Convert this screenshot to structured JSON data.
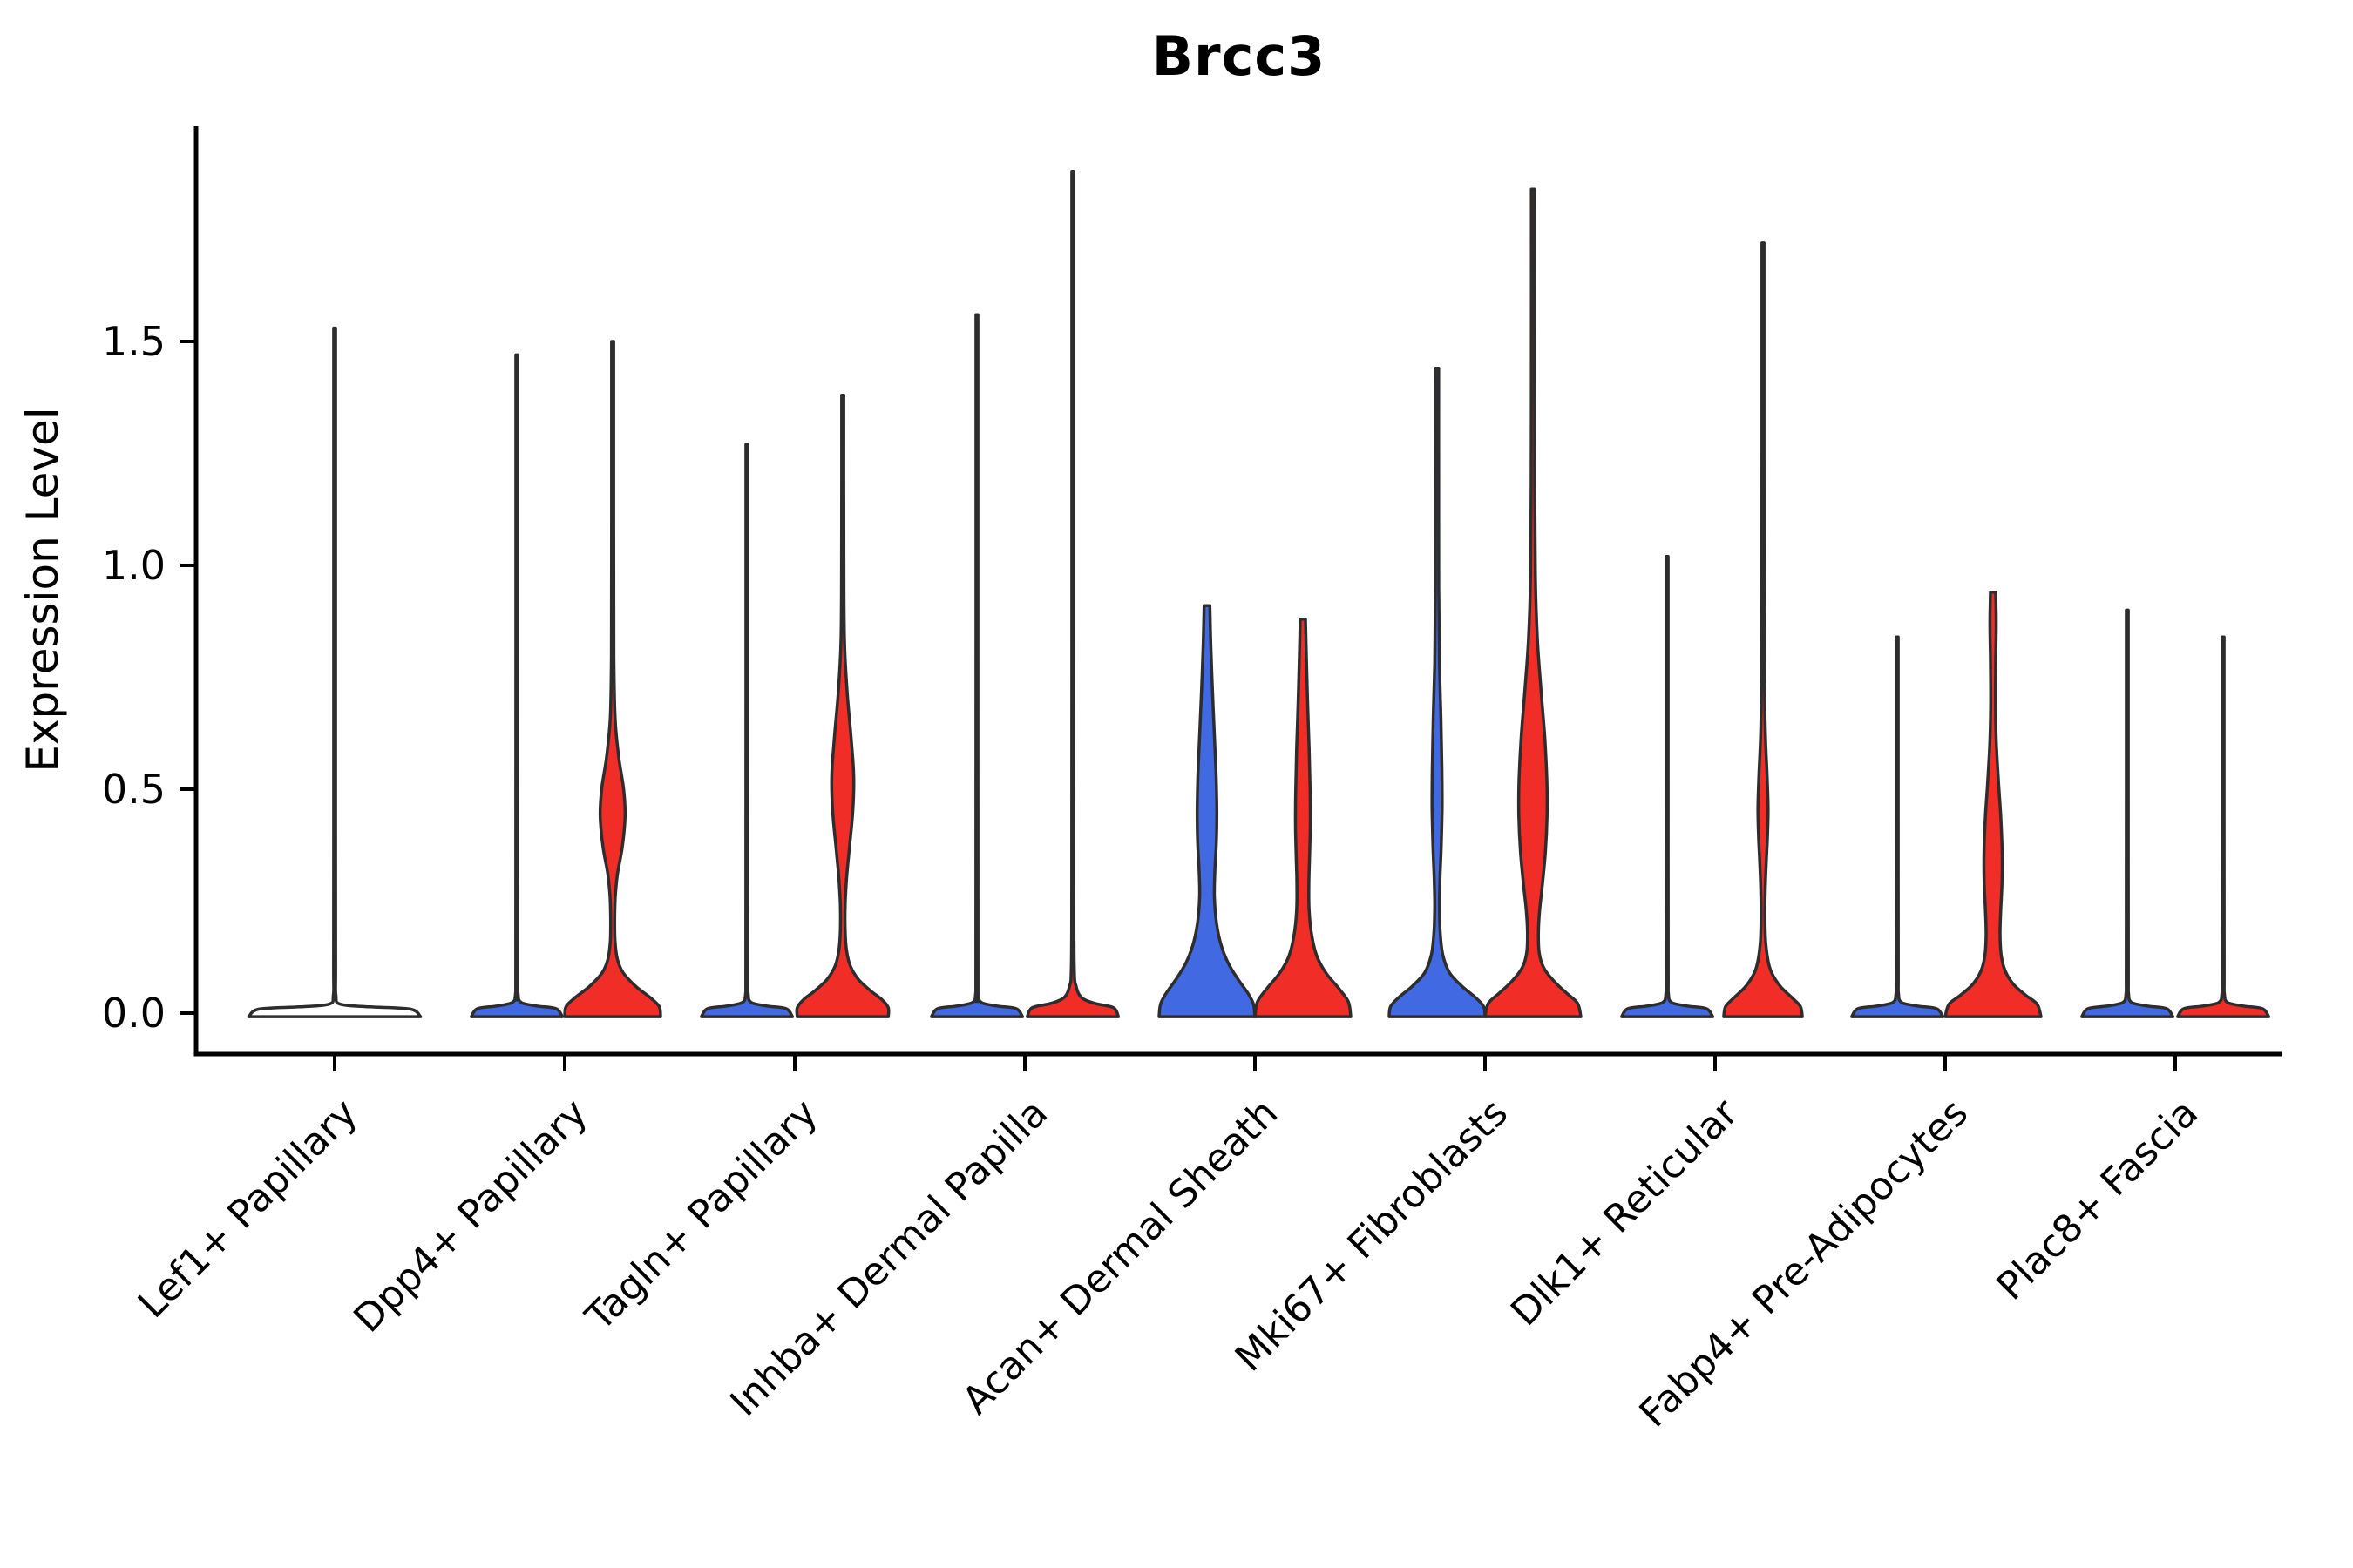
{
  "title": "Brcc3",
  "axes": {
    "ylabel": "Expression Level",
    "y_tick_labels_top_to_bottom": [
      "1.5",
      "1.0",
      "0.5",
      "0.0"
    ]
  },
  "colors": {
    "blue_fill": "#4169e1",
    "red_fill": "#f02d26",
    "outline": "#2d2d2d",
    "spine": "#000000",
    "background": "#ffffff"
  },
  "chart_data": {
    "type": "violin",
    "title": "Brcc3",
    "ylabel": "Expression Level",
    "ylim": [
      -0.09,
      1.98
    ],
    "yticks": [
      0.0,
      0.5,
      1.0,
      1.5
    ],
    "grid": false,
    "legend_position": "none",
    "categories": [
      "Lef1+ Papillary",
      "Dpp4+ Papillary",
      "Tagln+ Papillary",
      "Inhba+ Dermal Papilla",
      "Acan+ Dermal Sheath",
      "Mki67+ Fibroblasts",
      "Dlk1+ Reticular",
      "Fabp4+ Pre-Adipocytes",
      "Plac8+ Fascia"
    ],
    "violins": [
      {
        "category": "Lef1+ Papillary",
        "side": "center",
        "color": "none",
        "max_expression": 1.53,
        "profile": [
          [
            1.53,
            0.01
          ],
          [
            0.9,
            0.01
          ],
          [
            0.4,
            0.01
          ],
          [
            0.1,
            0.011
          ],
          [
            0.04,
            0.014
          ],
          [
            0.02,
            0.06
          ],
          [
            0.014,
            0.38
          ],
          [
            0.009,
            0.82
          ],
          [
            -0.008,
            0.93
          ]
        ]
      },
      {
        "category": "Dpp4+ Papillary",
        "side": "left",
        "color": "blue",
        "max_expression": 1.47,
        "profile": [
          [
            1.47,
            0.02
          ],
          [
            0.8,
            0.02
          ],
          [
            0.1,
            0.022
          ],
          [
            0.045,
            0.026
          ],
          [
            0.024,
            0.09
          ],
          [
            0.016,
            0.42
          ],
          [
            0.01,
            0.82
          ],
          [
            -0.008,
            0.95
          ]
        ]
      },
      {
        "category": "Dpp4+ Papillary",
        "side": "right",
        "color": "red",
        "max_expression": 1.5,
        "profile": [
          [
            1.5,
            0.022
          ],
          [
            1.1,
            0.022
          ],
          [
            0.8,
            0.026
          ],
          [
            0.66,
            0.05
          ],
          [
            0.57,
            0.13
          ],
          [
            0.5,
            0.23
          ],
          [
            0.44,
            0.26
          ],
          [
            0.37,
            0.2
          ],
          [
            0.31,
            0.1
          ],
          [
            0.26,
            0.055
          ],
          [
            0.21,
            0.042
          ],
          [
            0.16,
            0.05
          ],
          [
            0.12,
            0.1
          ],
          [
            0.09,
            0.22
          ],
          [
            0.06,
            0.48
          ],
          [
            0.035,
            0.78
          ],
          [
            0.015,
            0.97
          ],
          [
            -0.008,
            1.0
          ]
        ]
      },
      {
        "category": "Tagln+ Papillary",
        "side": "left",
        "color": "blue",
        "max_expression": 1.27,
        "profile": [
          [
            1.27,
            0.02
          ],
          [
            0.7,
            0.02
          ],
          [
            0.1,
            0.022
          ],
          [
            0.045,
            0.026
          ],
          [
            0.024,
            0.09
          ],
          [
            0.016,
            0.42
          ],
          [
            0.01,
            0.82
          ],
          [
            -0.008,
            0.95
          ]
        ]
      },
      {
        "category": "Tagln+ Papillary",
        "side": "right",
        "color": "red",
        "max_expression": 1.38,
        "profile": [
          [
            1.38,
            0.022
          ],
          [
            1.05,
            0.023
          ],
          [
            0.84,
            0.035
          ],
          [
            0.72,
            0.09
          ],
          [
            0.62,
            0.17
          ],
          [
            0.53,
            0.23
          ],
          [
            0.45,
            0.21
          ],
          [
            0.37,
            0.14
          ],
          [
            0.3,
            0.08
          ],
          [
            0.24,
            0.05
          ],
          [
            0.185,
            0.05
          ],
          [
            0.14,
            0.08
          ],
          [
            0.105,
            0.16
          ],
          [
            0.075,
            0.33
          ],
          [
            0.05,
            0.58
          ],
          [
            0.03,
            0.82
          ],
          [
            0.012,
            0.95
          ],
          [
            -0.008,
            0.95
          ]
        ]
      },
      {
        "category": "Inhba+ Dermal Papilla",
        "side": "left",
        "color": "blue",
        "max_expression": 1.56,
        "profile": [
          [
            1.56,
            0.02
          ],
          [
            0.85,
            0.02
          ],
          [
            0.1,
            0.022
          ],
          [
            0.045,
            0.026
          ],
          [
            0.024,
            0.09
          ],
          [
            0.016,
            0.42
          ],
          [
            0.01,
            0.82
          ],
          [
            -0.008,
            0.95
          ]
        ]
      },
      {
        "category": "Inhba+ Dermal Papilla",
        "side": "right",
        "color": "red",
        "max_expression": 1.88,
        "profile": [
          [
            1.88,
            0.02
          ],
          [
            1.0,
            0.02
          ],
          [
            0.3,
            0.022
          ],
          [
            0.1,
            0.03
          ],
          [
            0.06,
            0.07
          ],
          [
            0.035,
            0.18
          ],
          [
            0.022,
            0.45
          ],
          [
            0.012,
            0.85
          ],
          [
            -0.008,
            0.95
          ]
        ]
      },
      {
        "category": "Acan+ Dermal Sheath",
        "side": "left",
        "color": "blue",
        "max_expression": 0.91,
        "profile": [
          [
            0.91,
            0.06
          ],
          [
            0.82,
            0.08
          ],
          [
            0.72,
            0.115
          ],
          [
            0.62,
            0.155
          ],
          [
            0.53,
            0.19
          ],
          [
            0.45,
            0.205
          ],
          [
            0.38,
            0.195
          ],
          [
            0.32,
            0.165
          ],
          [
            0.26,
            0.155
          ],
          [
            0.2,
            0.2
          ],
          [
            0.15,
            0.3
          ],
          [
            0.11,
            0.45
          ],
          [
            0.075,
            0.65
          ],
          [
            0.045,
            0.85
          ],
          [
            0.02,
            0.97
          ],
          [
            -0.008,
            1.0
          ]
        ]
      },
      {
        "category": "Acan+ Dermal Sheath",
        "side": "right",
        "color": "red",
        "max_expression": 0.88,
        "profile": [
          [
            0.88,
            0.055
          ],
          [
            0.79,
            0.075
          ],
          [
            0.69,
            0.1
          ],
          [
            0.59,
            0.13
          ],
          [
            0.5,
            0.15
          ],
          [
            0.42,
            0.155
          ],
          [
            0.35,
            0.14
          ],
          [
            0.29,
            0.125
          ],
          [
            0.23,
            0.13
          ],
          [
            0.17,
            0.19
          ],
          [
            0.125,
            0.3
          ],
          [
            0.09,
            0.48
          ],
          [
            0.055,
            0.75
          ],
          [
            0.025,
            0.95
          ],
          [
            -0.008,
            1.0
          ]
        ]
      },
      {
        "category": "Mki67+ Fibroblasts",
        "side": "left",
        "color": "blue",
        "max_expression": 1.44,
        "profile": [
          [
            1.44,
            0.032
          ],
          [
            1.2,
            0.032
          ],
          [
            0.95,
            0.035
          ],
          [
            0.78,
            0.05
          ],
          [
            0.66,
            0.08
          ],
          [
            0.55,
            0.1
          ],
          [
            0.46,
            0.105
          ],
          [
            0.37,
            0.085
          ],
          [
            0.3,
            0.06
          ],
          [
            0.24,
            0.05
          ],
          [
            0.18,
            0.065
          ],
          [
            0.13,
            0.12
          ],
          [
            0.09,
            0.26
          ],
          [
            0.06,
            0.52
          ],
          [
            0.035,
            0.8
          ],
          [
            0.015,
            0.97
          ],
          [
            -0.008,
            1.0
          ]
        ]
      },
      {
        "category": "Mki67+ Fibroblasts",
        "side": "right",
        "color": "red",
        "max_expression": 1.84,
        "profile": [
          [
            1.84,
            0.032
          ],
          [
            1.5,
            0.032
          ],
          [
            1.18,
            0.036
          ],
          [
            0.98,
            0.05
          ],
          [
            0.84,
            0.09
          ],
          [
            0.72,
            0.17
          ],
          [
            0.61,
            0.25
          ],
          [
            0.52,
            0.29
          ],
          [
            0.44,
            0.295
          ],
          [
            0.36,
            0.26
          ],
          [
            0.29,
            0.2
          ],
          [
            0.23,
            0.14
          ],
          [
            0.18,
            0.115
          ],
          [
            0.135,
            0.13
          ],
          [
            0.1,
            0.23
          ],
          [
            0.07,
            0.45
          ],
          [
            0.045,
            0.7
          ],
          [
            0.022,
            0.93
          ],
          [
            -0.008,
            1.0
          ]
        ]
      },
      {
        "category": "Dlk1+ Reticular",
        "side": "left",
        "color": "blue",
        "max_expression": 1.02,
        "profile": [
          [
            1.02,
            0.02
          ],
          [
            0.55,
            0.02
          ],
          [
            0.1,
            0.022
          ],
          [
            0.045,
            0.026
          ],
          [
            0.024,
            0.09
          ],
          [
            0.016,
            0.42
          ],
          [
            0.01,
            0.82
          ],
          [
            -0.008,
            0.95
          ]
        ]
      },
      {
        "category": "Dlk1+ Reticular",
        "side": "right",
        "color": "red",
        "max_expression": 1.72,
        "profile": [
          [
            1.72,
            0.022
          ],
          [
            1.35,
            0.022
          ],
          [
            1.0,
            0.024
          ],
          [
            0.75,
            0.03
          ],
          [
            0.62,
            0.05
          ],
          [
            0.53,
            0.085
          ],
          [
            0.46,
            0.105
          ],
          [
            0.4,
            0.095
          ],
          [
            0.33,
            0.065
          ],
          [
            0.27,
            0.045
          ],
          [
            0.21,
            0.04
          ],
          [
            0.16,
            0.055
          ],
          [
            0.12,
            0.1
          ],
          [
            0.09,
            0.18
          ],
          [
            0.06,
            0.36
          ],
          [
            0.035,
            0.6
          ],
          [
            0.015,
            0.78
          ],
          [
            -0.008,
            0.82
          ]
        ]
      },
      {
        "category": "Fabp4+ Pre-Adipocytes",
        "side": "left",
        "color": "blue",
        "max_expression": 0.84,
        "profile": [
          [
            0.84,
            0.02
          ],
          [
            0.45,
            0.02
          ],
          [
            0.1,
            0.022
          ],
          [
            0.045,
            0.026
          ],
          [
            0.024,
            0.09
          ],
          [
            0.016,
            0.42
          ],
          [
            0.01,
            0.82
          ],
          [
            -0.008,
            0.95
          ]
        ]
      },
      {
        "category": "Fabp4+ Pre-Adipocytes",
        "side": "right",
        "color": "red",
        "max_expression": 0.94,
        "profile": [
          [
            0.94,
            0.055
          ],
          [
            0.87,
            0.065
          ],
          [
            0.79,
            0.055
          ],
          [
            0.7,
            0.05
          ],
          [
            0.61,
            0.065
          ],
          [
            0.52,
            0.11
          ],
          [
            0.44,
            0.16
          ],
          [
            0.36,
            0.19
          ],
          [
            0.29,
            0.185
          ],
          [
            0.23,
            0.16
          ],
          [
            0.175,
            0.145
          ],
          [
            0.13,
            0.17
          ],
          [
            0.095,
            0.25
          ],
          [
            0.065,
            0.42
          ],
          [
            0.04,
            0.68
          ],
          [
            0.02,
            0.92
          ],
          [
            -0.008,
            1.0
          ]
        ]
      },
      {
        "category": "Plac8+ Fascia",
        "side": "left",
        "color": "blue",
        "max_expression": 0.9,
        "profile": [
          [
            0.9,
            0.02
          ],
          [
            0.5,
            0.02
          ],
          [
            0.1,
            0.022
          ],
          [
            0.045,
            0.026
          ],
          [
            0.024,
            0.09
          ],
          [
            0.016,
            0.42
          ],
          [
            0.01,
            0.82
          ],
          [
            -0.008,
            0.95
          ]
        ]
      },
      {
        "category": "Plac8+ Fascia",
        "side": "right",
        "color": "red",
        "max_expression": 0.84,
        "profile": [
          [
            0.84,
            0.02
          ],
          [
            0.45,
            0.02
          ],
          [
            0.1,
            0.022
          ],
          [
            0.045,
            0.026
          ],
          [
            0.024,
            0.09
          ],
          [
            0.016,
            0.42
          ],
          [
            0.01,
            0.82
          ],
          [
            -0.008,
            0.95
          ]
        ]
      }
    ]
  }
}
